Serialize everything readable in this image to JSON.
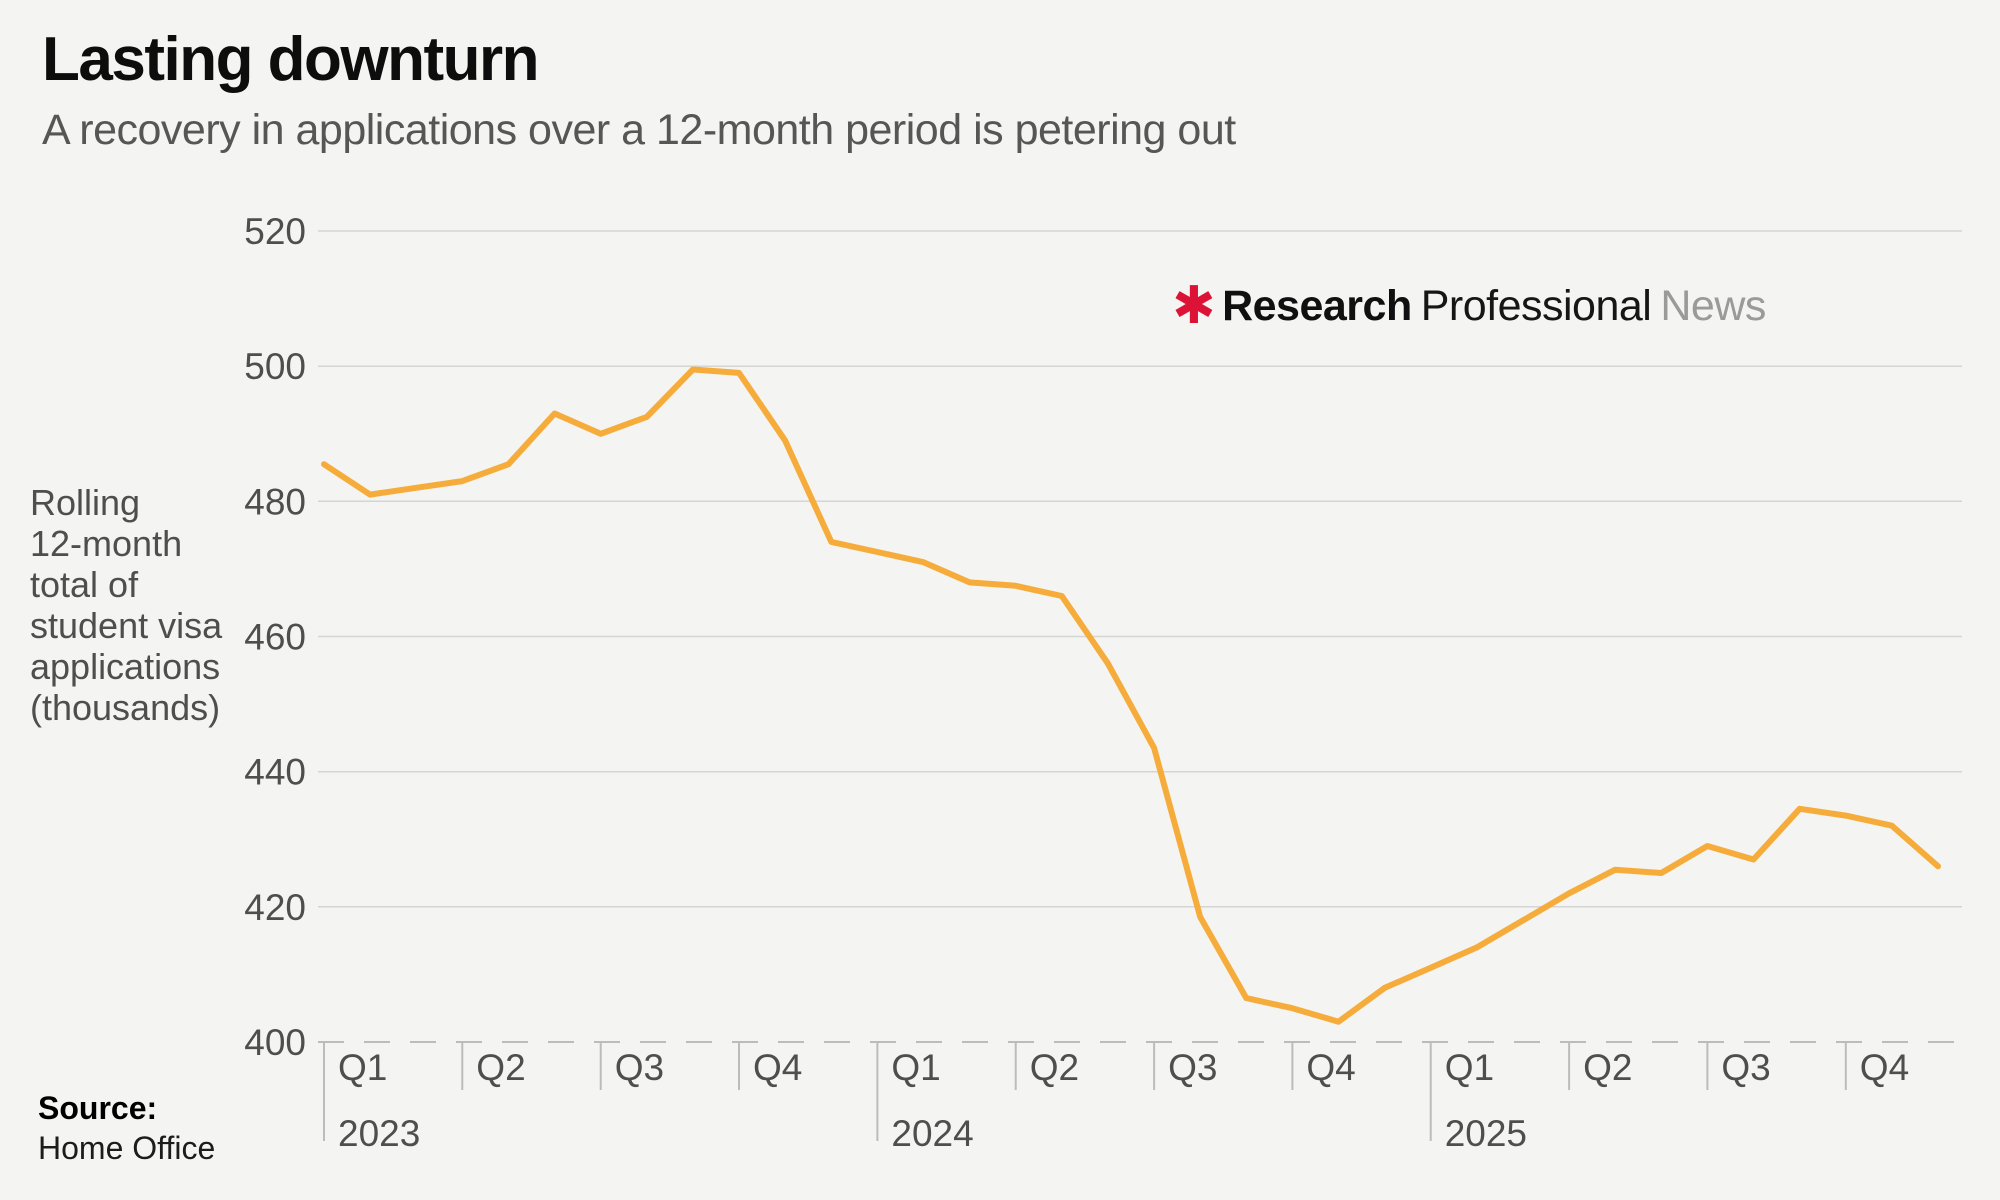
{
  "header": {
    "title": "Lasting downturn",
    "subtitle": "A recovery in applications over a 12-month period is petering out"
  },
  "logo": {
    "asterisk": "✱",
    "word1": "Research",
    "word2": "Professional",
    "word3": "News",
    "asterisk_color": "#dc1236"
  },
  "source": {
    "label": "Source:",
    "value": "Home Office"
  },
  "palette": {
    "background": "#f4f4f2",
    "line": "#F6AC3B",
    "gridline": "#d5d5d3",
    "axis_dashed": "#bcbcbc",
    "text_primary": "#0d0d0d",
    "text_secondary": "#4e4e4e",
    "logo_red": "#dc1236",
    "logo_gray": "#9a9a9a"
  },
  "chart_data": {
    "type": "line",
    "title": "Lasting downturn",
    "subtitle": "A recovery in applications over a 12-month period is petering out",
    "ylabel": "Rolling 12-month total of student visa applications (thousands)",
    "ylabel_lines": [
      "Rolling",
      "12-month",
      "total of",
      "student visa",
      "applications",
      "(thousands)"
    ],
    "ylim": [
      400,
      520
    ],
    "yticks": [
      400,
      420,
      440,
      460,
      480,
      500,
      520
    ],
    "grid": "horizontal",
    "baseline_style": "dashed",
    "x_frequency": "monthly",
    "x_range": "Jan 2023 - Dec 2025",
    "quarter_labels": [
      "Q1",
      "Q2",
      "Q3",
      "Q4",
      "Q1",
      "Q2",
      "Q3",
      "Q4",
      "Q1",
      "Q2",
      "Q3",
      "Q4"
    ],
    "year_labels": [
      {
        "label": "2023",
        "quarter_index": 0
      },
      {
        "label": "2024",
        "quarter_index": 4
      },
      {
        "label": "2025",
        "quarter_index": 8
      }
    ],
    "series": [
      {
        "name": "Rolling 12-month total of student visa applications (thousands)",
        "color": "#F6AC3B",
        "values": [
          485.5,
          481,
          482,
          483,
          485.5,
          493,
          490,
          492.5,
          499.5,
          499,
          489,
          474,
          472.5,
          471,
          468,
          467.5,
          466,
          456,
          443.5,
          418.5,
          406.5,
          405,
          403,
          408,
          411,
          414,
          418,
          422,
          425.5,
          425,
          429,
          427,
          434.5,
          433.5,
          432,
          426
        ]
      }
    ],
    "source": "Home Office"
  }
}
